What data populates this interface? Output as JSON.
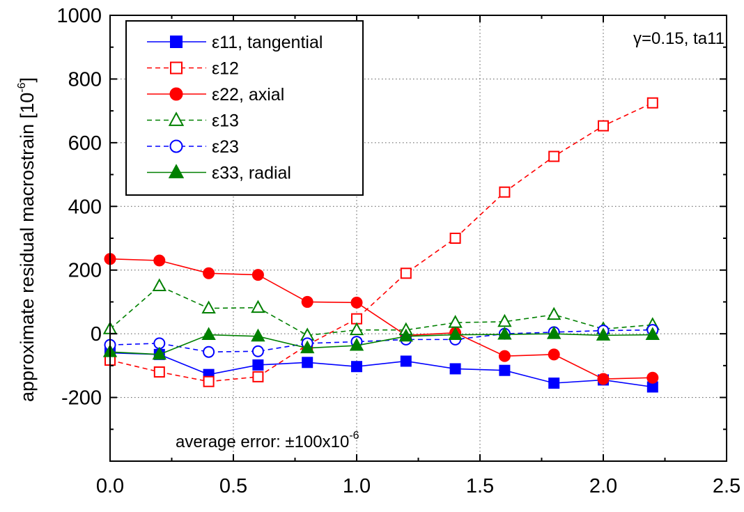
{
  "chart_data": {
    "type": "line",
    "xlabel": "",
    "ylabel": "approximate residual macrostrain",
    "ylabel_unit_base": "[10",
    "ylabel_unit_exp": "-6",
    "ylabel_unit_close": "]",
    "xlim": [
      0.0,
      2.5
    ],
    "ylim": [
      -400,
      1000
    ],
    "x_ticks": [
      0.0,
      0.5,
      1.0,
      1.5,
      2.0,
      2.5
    ],
    "x_tick_labels": [
      "0.0",
      "0.5",
      "1.0",
      "1.5",
      "2.0",
      "2.5"
    ],
    "y_ticks": [
      -200,
      0,
      200,
      400,
      600,
      800,
      1000
    ],
    "y_tick_labels": [
      "-200",
      "0",
      "200",
      "400",
      "600",
      "800",
      "1000"
    ],
    "grid": true,
    "legend_position": "top-left",
    "annotations": {
      "condition": "γ=0.15, ta11",
      "error_base": "average error: ±100x10",
      "error_exp": "-6"
    },
    "x": [
      0.0,
      0.2,
      0.4,
      0.6,
      0.8,
      1.0,
      1.2,
      1.4,
      1.6,
      1.8,
      2.0,
      2.2
    ],
    "series": [
      {
        "name": "ε11, tangential",
        "color": "#0000ff",
        "marker": "square",
        "filled": true,
        "dashed": false,
        "values": [
          -60,
          -65,
          -128,
          -98,
          -90,
          -103,
          -86,
          -110,
          -115,
          -155,
          -145,
          -167
        ]
      },
      {
        "name": "ε12",
        "color": "#ff0000",
        "marker": "square",
        "filled": false,
        "dashed": true,
        "values": [
          -83,
          -120,
          -150,
          -135,
          -35,
          47,
          190,
          300,
          445,
          557,
          653,
          725
        ]
      },
      {
        "name": "ε22, axial",
        "color": "#ff0000",
        "marker": "circle",
        "filled": true,
        "dashed": false,
        "values": [
          235,
          230,
          190,
          185,
          100,
          98,
          -5,
          3,
          -70,
          -65,
          -142,
          -138
        ]
      },
      {
        "name": "ε13",
        "color": "#008000",
        "marker": "triangle",
        "filled": false,
        "dashed": true,
        "values": [
          15,
          150,
          80,
          82,
          -5,
          12,
          12,
          35,
          38,
          60,
          15,
          28
        ]
      },
      {
        "name": "ε23",
        "color": "#0000ff",
        "marker": "circle",
        "filled": false,
        "dashed": true,
        "values": [
          -35,
          -30,
          -57,
          -55,
          -30,
          -25,
          -18,
          -18,
          0,
          5,
          10,
          12
        ]
      },
      {
        "name": "ε33, radial",
        "color": "#008000",
        "marker": "triangle",
        "filled": true,
        "dashed": false,
        "values": [
          -57,
          -65,
          -3,
          -8,
          -45,
          -37,
          -8,
          -3,
          -2,
          0,
          -5,
          -3
        ]
      }
    ]
  }
}
